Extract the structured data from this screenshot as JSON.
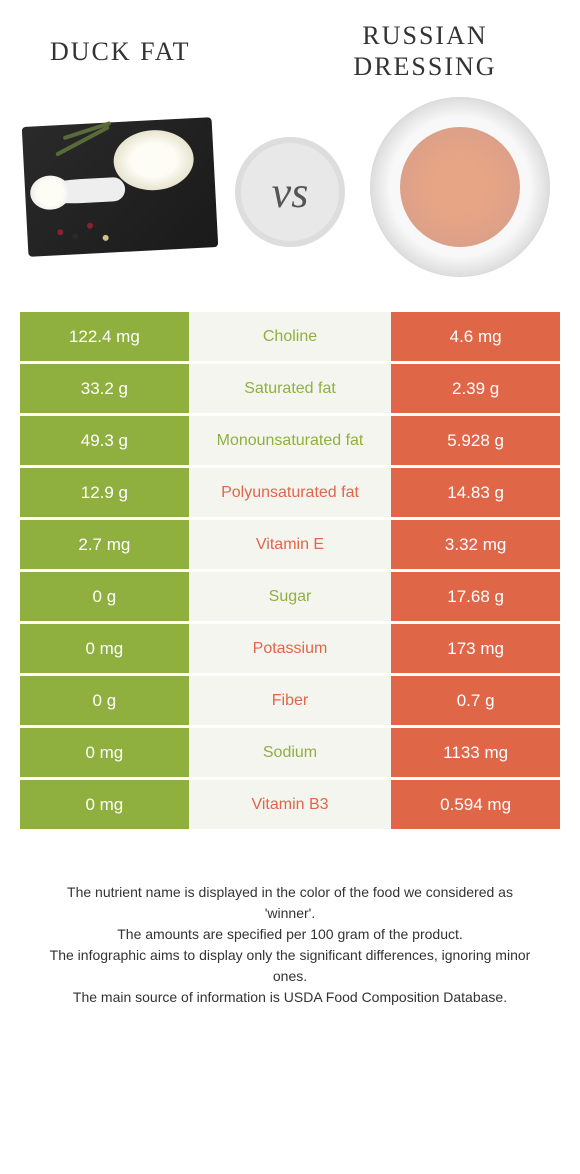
{
  "header": {
    "left_title": "DUCK FAT",
    "right_title": "RUSSIAN DRESSING",
    "vs_label": "vs"
  },
  "colors": {
    "left_bar": "#8fb03e",
    "right_bar": "#e06648",
    "mid_bg": "#f5f5f0",
    "left_text": "#8fb03e",
    "right_text": "#e06648"
  },
  "rows": [
    {
      "nutrient": "Choline",
      "left": "122.4 mg",
      "right": "4.6 mg",
      "winner": "left"
    },
    {
      "nutrient": "Saturated fat",
      "left": "33.2 g",
      "right": "2.39 g",
      "winner": "left"
    },
    {
      "nutrient": "Monounsaturated fat",
      "left": "49.3 g",
      "right": "5.928 g",
      "winner": "left"
    },
    {
      "nutrient": "Polyunsaturated fat",
      "left": "12.9 g",
      "right": "14.83 g",
      "winner": "right"
    },
    {
      "nutrient": "Vitamin E",
      "left": "2.7 mg",
      "right": "3.32 mg",
      "winner": "right"
    },
    {
      "nutrient": "Sugar",
      "left": "0 g",
      "right": "17.68 g",
      "winner": "left"
    },
    {
      "nutrient": "Potassium",
      "left": "0 mg",
      "right": "173 mg",
      "winner": "right"
    },
    {
      "nutrient": "Fiber",
      "left": "0 g",
      "right": "0.7 g",
      "winner": "right"
    },
    {
      "nutrient": "Sodium",
      "left": "0 mg",
      "right": "1133 mg",
      "winner": "left"
    },
    {
      "nutrient": "Vitamin B3",
      "left": "0 mg",
      "right": "0.594 mg",
      "winner": "right"
    }
  ],
  "footer": {
    "line1": "The nutrient name is displayed in the color of the food we considered as 'winner'.",
    "line2": "The amounts are specified per 100 gram of the product.",
    "line3": "The infographic aims to display only the significant differences, ignoring minor ones.",
    "line4": "The main source of information is USDA Food Composition Database."
  }
}
